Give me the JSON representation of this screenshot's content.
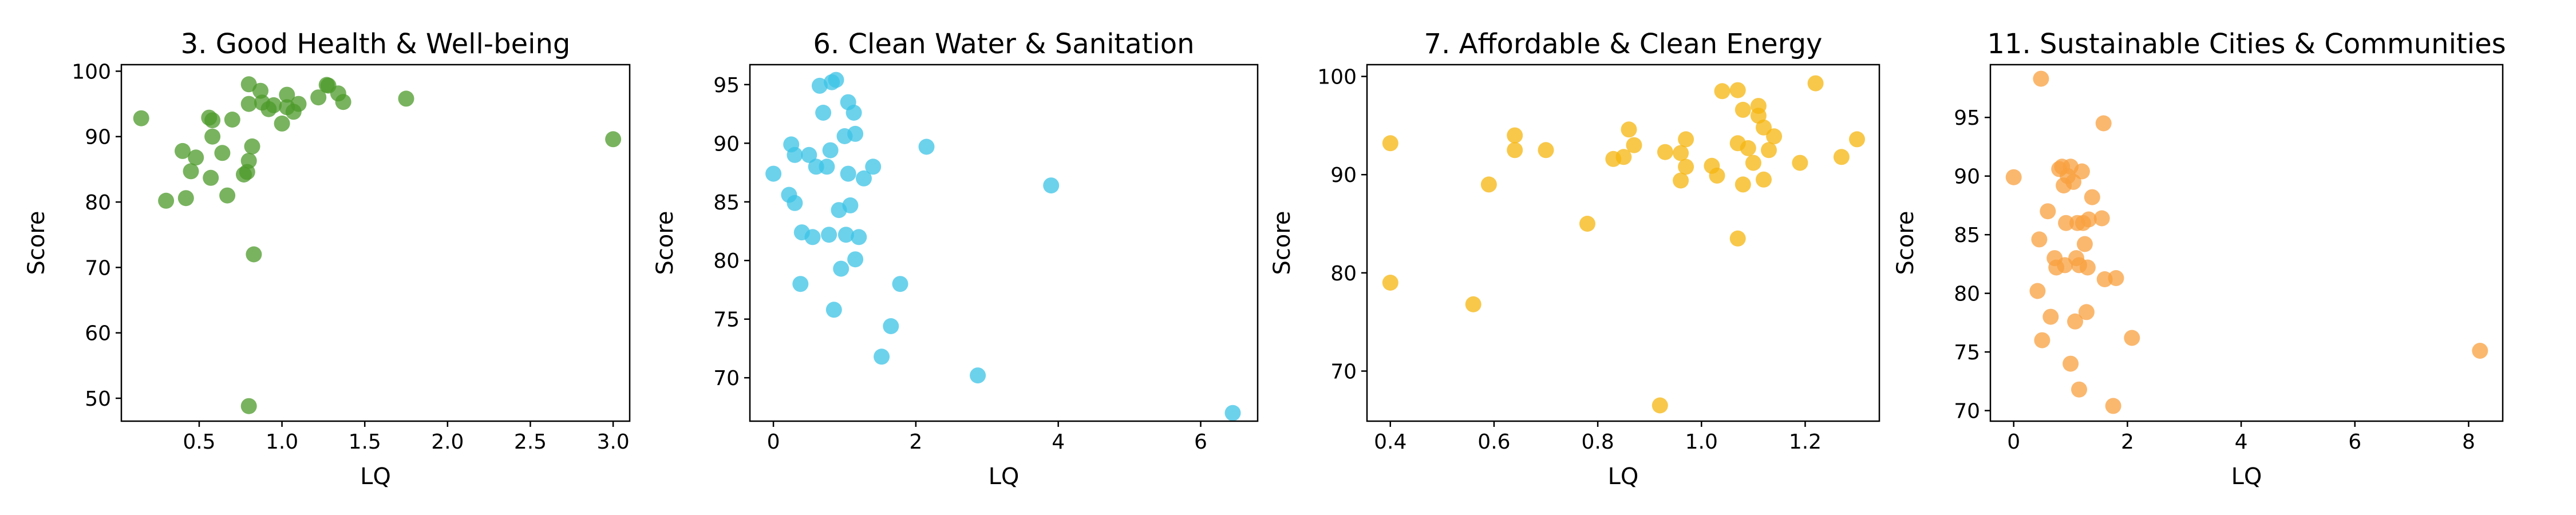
{
  "chart_data": [
    {
      "type": "scatter",
      "title": "3. Good Health & Well-being",
      "xlabel": "LQ",
      "ylabel": "Score",
      "xlim": [
        0.03,
        3.1
      ],
      "ylim": [
        46.5,
        101
      ],
      "xticks": [
        0.5,
        1.0,
        1.5,
        2.0,
        2.5,
        3.0
      ],
      "xtick_labels": [
        "0.5",
        "1.0",
        "1.5",
        "2.0",
        "2.5",
        "3.0"
      ],
      "yticks": [
        50,
        60,
        70,
        80,
        90,
        100
      ],
      "ytick_labels": [
        "50",
        "60",
        "70",
        "80",
        "90",
        "100"
      ],
      "color": "#4c9a2a",
      "grid": false,
      "points": [
        {
          "x": 0.15,
          "y": 92.8
        },
        {
          "x": 0.3,
          "y": 80.2
        },
        {
          "x": 0.4,
          "y": 87.8
        },
        {
          "x": 0.42,
          "y": 80.6
        },
        {
          "x": 0.45,
          "y": 84.7
        },
        {
          "x": 0.48,
          "y": 86.8
        },
        {
          "x": 0.56,
          "y": 92.9
        },
        {
          "x": 0.58,
          "y": 92.5
        },
        {
          "x": 0.58,
          "y": 90.0
        },
        {
          "x": 0.57,
          "y": 83.7
        },
        {
          "x": 0.64,
          "y": 87.5
        },
        {
          "x": 0.67,
          "y": 81.0
        },
        {
          "x": 0.7,
          "y": 92.6
        },
        {
          "x": 0.77,
          "y": 84.2
        },
        {
          "x": 0.79,
          "y": 84.6
        },
        {
          "x": 0.8,
          "y": 86.3
        },
        {
          "x": 0.8,
          "y": 95.0
        },
        {
          "x": 0.8,
          "y": 98.0
        },
        {
          "x": 0.82,
          "y": 88.5
        },
        {
          "x": 0.83,
          "y": 72.0
        },
        {
          "x": 0.8,
          "y": 48.8
        },
        {
          "x": 0.87,
          "y": 97.0
        },
        {
          "x": 0.88,
          "y": 95.2
        },
        {
          "x": 0.92,
          "y": 94.2
        },
        {
          "x": 0.95,
          "y": 94.8
        },
        {
          "x": 1.0,
          "y": 92.0
        },
        {
          "x": 1.03,
          "y": 94.5
        },
        {
          "x": 1.03,
          "y": 96.4
        },
        {
          "x": 1.07,
          "y": 93.8
        },
        {
          "x": 1.1,
          "y": 95.0
        },
        {
          "x": 1.22,
          "y": 96.0
        },
        {
          "x": 1.27,
          "y": 97.9
        },
        {
          "x": 1.28,
          "y": 97.8
        },
        {
          "x": 1.34,
          "y": 96.6
        },
        {
          "x": 1.37,
          "y": 95.3
        },
        {
          "x": 1.75,
          "y": 95.8
        },
        {
          "x": 3.0,
          "y": 89.6
        }
      ]
    },
    {
      "type": "scatter",
      "title": "6. Clean Water & Sanitation",
      "xlabel": "LQ",
      "ylabel": "Score",
      "xlim": [
        -0.33,
        6.8
      ],
      "ylim": [
        66.3,
        96.7
      ],
      "xticks": [
        0,
        2,
        4,
        6
      ],
      "xtick_labels": [
        "0",
        "2",
        "4",
        "6"
      ],
      "yticks": [
        70,
        75,
        80,
        85,
        90,
        95
      ],
      "ytick_labels": [
        "70",
        "75",
        "80",
        "85",
        "90",
        "95"
      ],
      "color": "#3bc3e6",
      "grid": false,
      "points": [
        {
          "x": 0.0,
          "y": 87.4
        },
        {
          "x": 0.22,
          "y": 85.6
        },
        {
          "x": 0.25,
          "y": 89.9
        },
        {
          "x": 0.3,
          "y": 84.9
        },
        {
          "x": 0.3,
          "y": 89.0
        },
        {
          "x": 0.38,
          "y": 78.0
        },
        {
          "x": 0.4,
          "y": 82.4
        },
        {
          "x": 0.5,
          "y": 89.0
        },
        {
          "x": 0.55,
          "y": 82.0
        },
        {
          "x": 0.6,
          "y": 88.0
        },
        {
          "x": 0.65,
          "y": 94.9
        },
        {
          "x": 0.7,
          "y": 92.6
        },
        {
          "x": 0.75,
          "y": 88.0
        },
        {
          "x": 0.78,
          "y": 82.2
        },
        {
          "x": 0.8,
          "y": 89.4
        },
        {
          "x": 0.82,
          "y": 95.2
        },
        {
          "x": 0.85,
          "y": 75.8
        },
        {
          "x": 0.88,
          "y": 95.4
        },
        {
          "x": 0.92,
          "y": 84.3
        },
        {
          "x": 0.95,
          "y": 79.3
        },
        {
          "x": 1.0,
          "y": 90.6
        },
        {
          "x": 1.02,
          "y": 82.2
        },
        {
          "x": 1.05,
          "y": 93.5
        },
        {
          "x": 1.05,
          "y": 87.4
        },
        {
          "x": 1.08,
          "y": 84.7
        },
        {
          "x": 1.13,
          "y": 92.6
        },
        {
          "x": 1.15,
          "y": 80.1
        },
        {
          "x": 1.15,
          "y": 90.8
        },
        {
          "x": 1.2,
          "y": 82.0
        },
        {
          "x": 1.27,
          "y": 87.0
        },
        {
          "x": 1.4,
          "y": 88.0
        },
        {
          "x": 1.52,
          "y": 71.8
        },
        {
          "x": 1.65,
          "y": 74.4
        },
        {
          "x": 1.78,
          "y": 78.0
        },
        {
          "x": 2.15,
          "y": 89.7
        },
        {
          "x": 2.87,
          "y": 70.2
        },
        {
          "x": 3.9,
          "y": 86.4
        },
        {
          "x": 6.45,
          "y": 67.0
        }
      ]
    },
    {
      "type": "scatter",
      "title": "7. Affordable & Clean Energy",
      "xlabel": "LQ",
      "ylabel": "Score",
      "xlim": [
        0.355,
        1.343
      ],
      "ylim": [
        64.9,
        101.2
      ],
      "xticks": [
        0.4,
        0.6,
        0.8,
        1.0,
        1.2
      ],
      "xtick_labels": [
        "0.4",
        "0.6",
        "0.8",
        "1.0",
        "1.2"
      ],
      "yticks": [
        70,
        80,
        90,
        100
      ],
      "ytick_labels": [
        "70",
        "80",
        "90",
        "100"
      ],
      "color": "#f5b50f",
      "grid": false,
      "points": [
        {
          "x": 0.4,
          "y": 93.2
        },
        {
          "x": 0.4,
          "y": 79.0
        },
        {
          "x": 0.56,
          "y": 76.8
        },
        {
          "x": 0.59,
          "y": 89.0
        },
        {
          "x": 0.64,
          "y": 94.0
        },
        {
          "x": 0.64,
          "y": 92.5
        },
        {
          "x": 0.7,
          "y": 92.5
        },
        {
          "x": 0.78,
          "y": 85.0
        },
        {
          "x": 0.83,
          "y": 91.6
        },
        {
          "x": 0.85,
          "y": 91.8
        },
        {
          "x": 0.86,
          "y": 94.6
        },
        {
          "x": 0.87,
          "y": 93.0
        },
        {
          "x": 0.92,
          "y": 66.5
        },
        {
          "x": 0.93,
          "y": 92.3
        },
        {
          "x": 0.96,
          "y": 92.2
        },
        {
          "x": 0.96,
          "y": 89.4
        },
        {
          "x": 0.97,
          "y": 90.8
        },
        {
          "x": 0.97,
          "y": 93.6
        },
        {
          "x": 1.02,
          "y": 90.9
        },
        {
          "x": 1.03,
          "y": 89.9
        },
        {
          "x": 1.04,
          "y": 98.5
        },
        {
          "x": 1.07,
          "y": 98.6
        },
        {
          "x": 1.07,
          "y": 93.2
        },
        {
          "x": 1.07,
          "y": 83.5
        },
        {
          "x": 1.08,
          "y": 96.6
        },
        {
          "x": 1.08,
          "y": 89.0
        },
        {
          "x": 1.09,
          "y": 92.7
        },
        {
          "x": 1.1,
          "y": 91.2
        },
        {
          "x": 1.11,
          "y": 96.0
        },
        {
          "x": 1.11,
          "y": 97.0
        },
        {
          "x": 1.12,
          "y": 94.8
        },
        {
          "x": 1.12,
          "y": 89.5
        },
        {
          "x": 1.13,
          "y": 92.5
        },
        {
          "x": 1.14,
          "y": 93.9
        },
        {
          "x": 1.19,
          "y": 91.2
        },
        {
          "x": 1.22,
          "y": 99.3
        },
        {
          "x": 1.27,
          "y": 91.8
        },
        {
          "x": 1.3,
          "y": 93.6
        }
      ]
    },
    {
      "type": "scatter",
      "title": "11.  Sustainable Cities & Communities",
      "xlabel": "LQ",
      "ylabel": "Score",
      "xlim": [
        -0.41,
        8.6
      ],
      "ylim": [
        69.1,
        99.5
      ],
      "xticks": [
        0,
        2,
        4,
        6,
        8
      ],
      "xtick_labels": [
        "0",
        "2",
        "4",
        "6",
        "8"
      ],
      "yticks": [
        70,
        75,
        80,
        85,
        90,
        95
      ],
      "ytick_labels": [
        "70",
        "75",
        "80",
        "85",
        "90",
        "95"
      ],
      "color": "#f8a03f",
      "grid": false,
      "points": [
        {
          "x": 0.0,
          "y": 89.9
        },
        {
          "x": 0.42,
          "y": 80.2
        },
        {
          "x": 0.45,
          "y": 84.6
        },
        {
          "x": 0.48,
          "y": 98.3
        },
        {
          "x": 0.5,
          "y": 76.0
        },
        {
          "x": 0.6,
          "y": 87.0
        },
        {
          "x": 0.65,
          "y": 78.0
        },
        {
          "x": 0.72,
          "y": 83.0
        },
        {
          "x": 0.75,
          "y": 82.2
        },
        {
          "x": 0.8,
          "y": 90.6
        },
        {
          "x": 0.85,
          "y": 90.8
        },
        {
          "x": 0.88,
          "y": 89.2
        },
        {
          "x": 0.9,
          "y": 82.4
        },
        {
          "x": 0.92,
          "y": 86.0
        },
        {
          "x": 0.95,
          "y": 90.0
        },
        {
          "x": 1.0,
          "y": 74.0
        },
        {
          "x": 1.0,
          "y": 90.8
        },
        {
          "x": 1.05,
          "y": 89.5
        },
        {
          "x": 1.08,
          "y": 77.6
        },
        {
          "x": 1.1,
          "y": 83.0
        },
        {
          "x": 1.12,
          "y": 86.0
        },
        {
          "x": 1.15,
          "y": 71.8
        },
        {
          "x": 1.15,
          "y": 82.4
        },
        {
          "x": 1.2,
          "y": 90.4
        },
        {
          "x": 1.22,
          "y": 86.0
        },
        {
          "x": 1.25,
          "y": 84.2
        },
        {
          "x": 1.28,
          "y": 78.4
        },
        {
          "x": 1.3,
          "y": 82.2
        },
        {
          "x": 1.32,
          "y": 86.3
        },
        {
          "x": 1.38,
          "y": 88.2
        },
        {
          "x": 1.55,
          "y": 86.4
        },
        {
          "x": 1.58,
          "y": 94.5
        },
        {
          "x": 1.6,
          "y": 81.2
        },
        {
          "x": 1.75,
          "y": 70.4
        },
        {
          "x": 1.8,
          "y": 81.3
        },
        {
          "x": 2.08,
          "y": 76.2
        },
        {
          "x": 8.2,
          "y": 75.1
        }
      ]
    }
  ]
}
